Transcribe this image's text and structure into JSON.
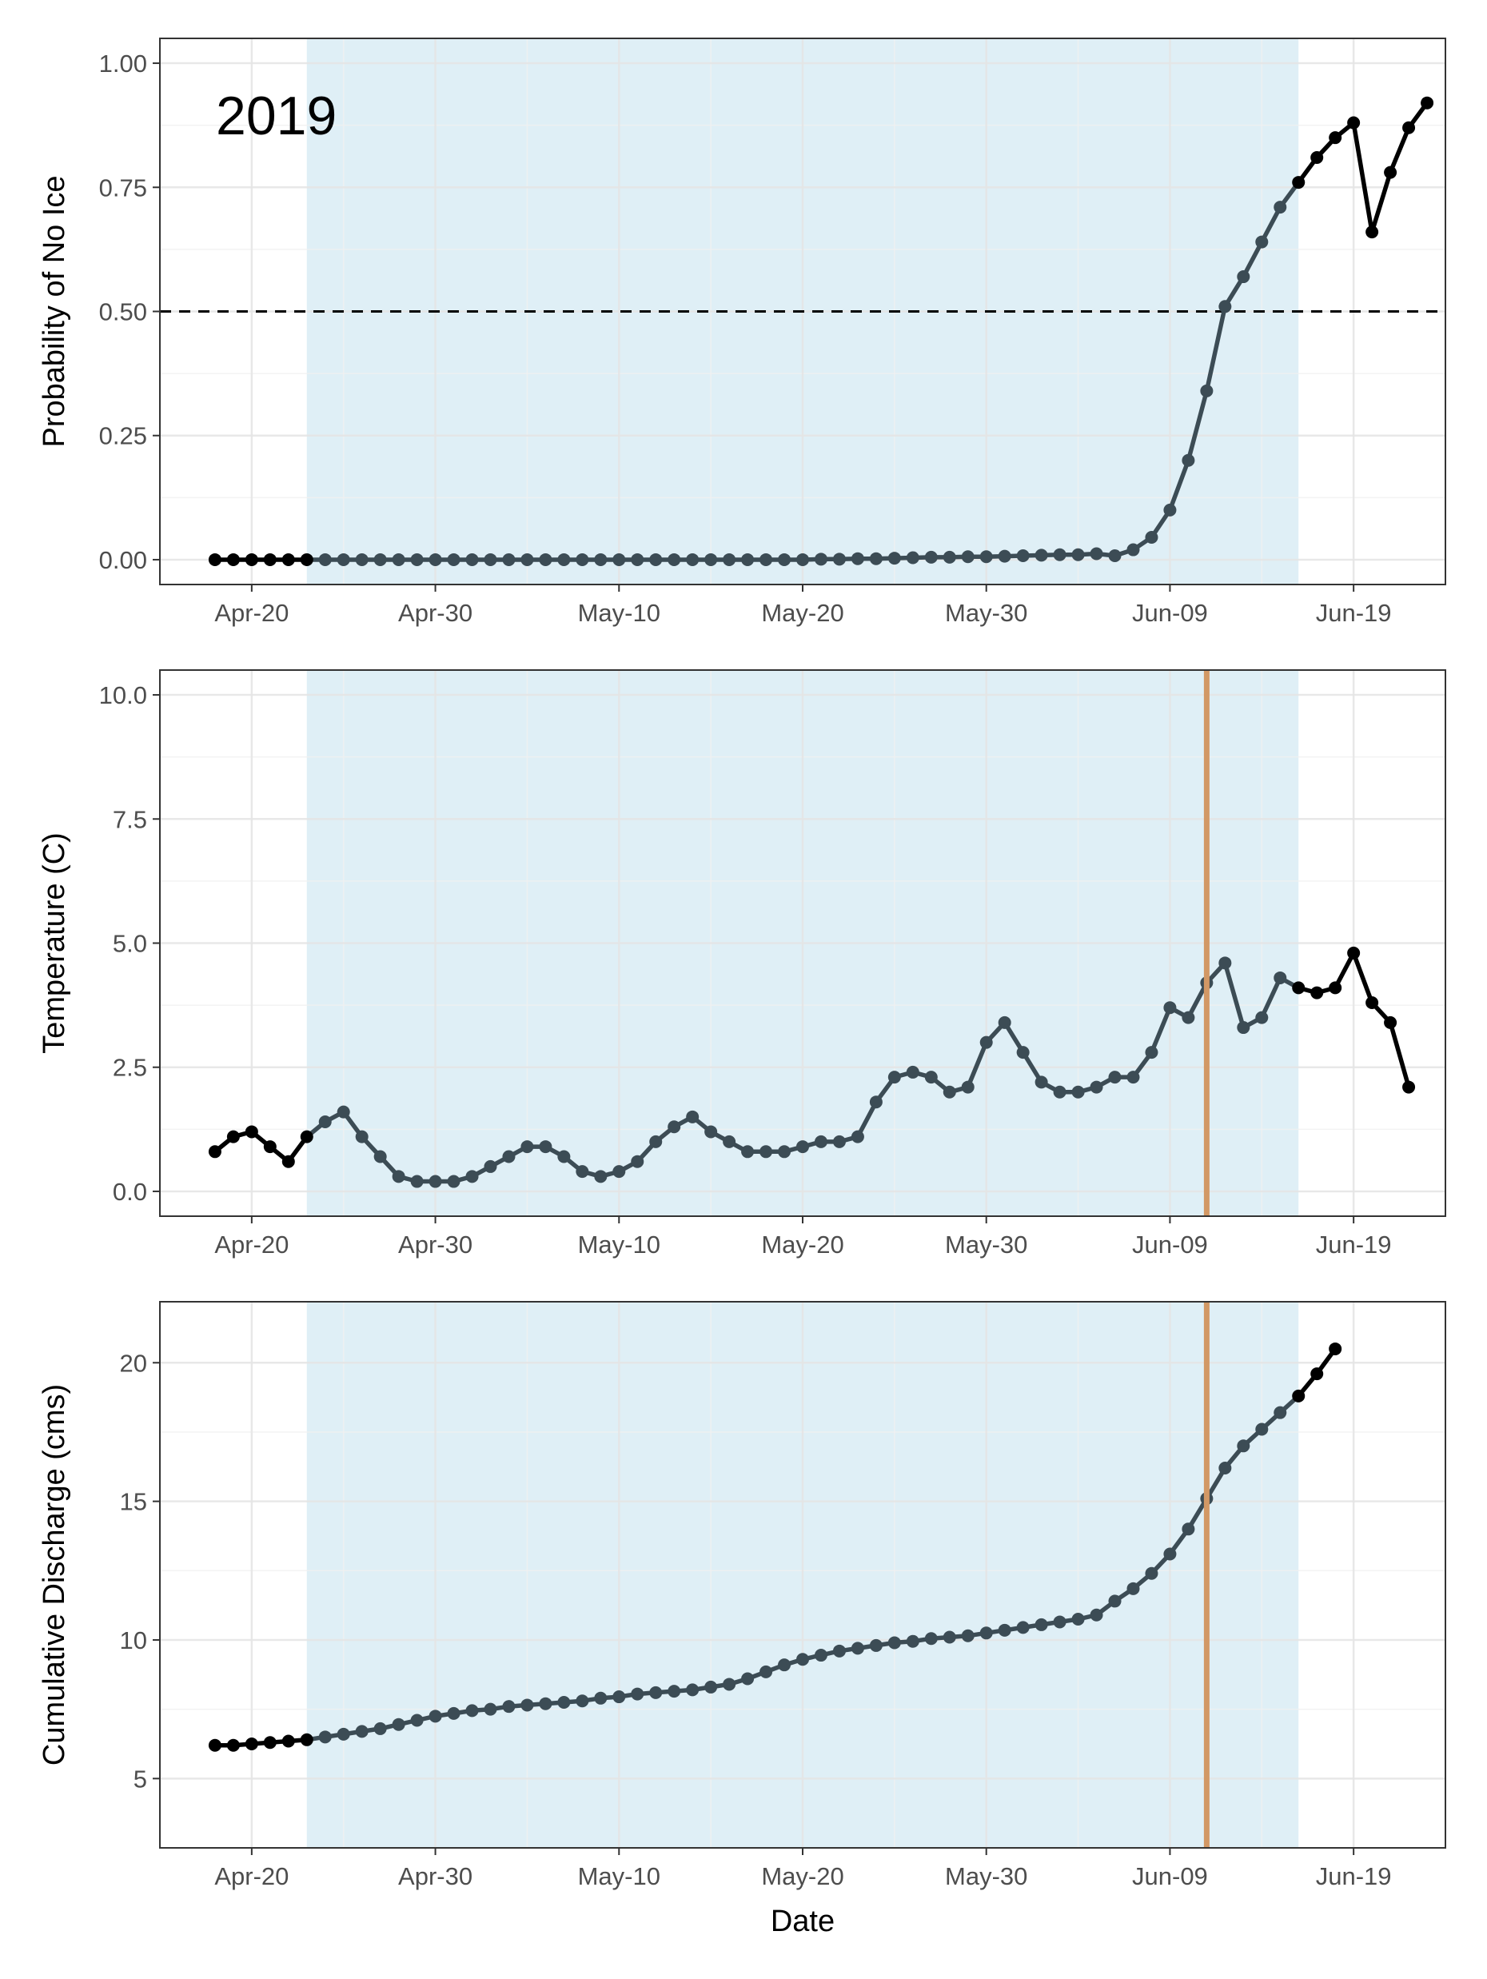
{
  "chart_data": {
    "type": "line",
    "annotation": "2019",
    "xlabel": "Date",
    "x_tick_labels": [
      "Apr-20",
      "Apr-30",
      "May-10",
      "May-20",
      "May-30",
      "Jun-09",
      "Jun-19"
    ],
    "x_tick_dates": [
      "2019-04-20",
      "2019-04-30",
      "2019-05-10",
      "2019-05-20",
      "2019-05-30",
      "2019-06-09",
      "2019-06-19"
    ],
    "xlim": [
      "2019-04-15",
      "2019-06-24"
    ],
    "shaded_period": {
      "start": "2019-04-23",
      "end": "2019-06-16",
      "color": "#ddeef5"
    },
    "colors": {
      "observed": "#000000",
      "shaded_series": "#3c4c55",
      "vertical_line": "#d29865",
      "threshold_line": "#000000",
      "grid_major": "#e5e5e5",
      "grid_minor": "#f1f1f1"
    },
    "panels": [
      {
        "ylabel": "Probability of No Ice",
        "ylim": [
          -0.05,
          1.05
        ],
        "y_ticks": [
          0,
          0.25,
          0.5,
          0.75,
          1
        ],
        "y_tick_labels": [
          "0.00",
          "0.25",
          "0.50",
          "0.75",
          "1.00"
        ],
        "hline": 0.5,
        "vline": null,
        "series": [
          {
            "start": "2019-04-18",
            "values": [
              0,
              0,
              0,
              0,
              0,
              0,
              0,
              0,
              0,
              0,
              0,
              0,
              0,
              0,
              0,
              0,
              0,
              0,
              0,
              0,
              0,
              0,
              0,
              0,
              0,
              0,
              0,
              0,
              0,
              0,
              0,
              0,
              0,
              0.001,
              0.001,
              0.002,
              0.002,
              0.003,
              0.004,
              0.005,
              0.005,
              0.006,
              0.006,
              0.007,
              0.008,
              0.009,
              0.01,
              0.01,
              0.012,
              0.008,
              0.02,
              0.045,
              0.1,
              0.2,
              0.34,
              0.51,
              0.57,
              0.64,
              0.71,
              0.76,
              0.81,
              0.85,
              0.88,
              0.66,
              0.78,
              0.87,
              0.92
            ]
          }
        ]
      },
      {
        "ylabel": "Temperature (C)",
        "ylim": [
          -0.5,
          10.5
        ],
        "y_ticks": [
          0,
          2.5,
          5,
          7.5,
          10
        ],
        "y_tick_labels": [
          "0.0",
          "2.5",
          "5.0",
          "7.5",
          "10.0"
        ],
        "hline": null,
        "vline": "2019-06-11",
        "series": [
          {
            "start": "2019-04-18",
            "values": [
              0.8,
              1.1,
              1.2,
              0.9,
              0.6,
              1.1,
              1.4,
              1.6,
              1.1,
              0.7,
              0.3,
              0.2,
              0.2,
              0.2,
              0.3,
              0.5,
              0.7,
              0.9,
              0.9,
              0.7,
              0.4,
              0.3,
              0.4,
              0.6,
              1.0,
              1.3,
              1.5,
              1.2,
              1.0,
              0.8,
              0.8,
              0.8,
              0.9,
              1.0,
              1.0,
              1.1,
              1.8,
              2.3,
              2.4,
              2.3,
              2.0,
              2.1,
              3.0,
              3.4,
              2.8,
              2.2,
              2.0,
              2.0,
              2.1,
              2.3,
              2.3,
              2.8,
              3.7,
              3.5,
              4.2,
              4.6,
              3.3,
              3.5,
              4.3,
              4.1,
              4.0,
              4.1,
              4.8,
              3.8,
              3.4,
              2.1
            ]
          }
        ]
      },
      {
        "ylabel": "Cumulative Discharge (cms)",
        "ylim": [
          2.5,
          22.2
        ],
        "y_ticks": [
          5,
          10,
          15,
          20
        ],
        "y_tick_labels": [
          "5",
          "10",
          "15",
          "20"
        ],
        "hline": null,
        "vline": "2019-06-11",
        "series": [
          {
            "start": "2019-04-18",
            "values": [
              6.2,
              6.2,
              6.25,
              6.3,
              6.35,
              6.4,
              6.5,
              6.6,
              6.7,
              6.8,
              6.95,
              7.1,
              7.25,
              7.35,
              7.45,
              7.5,
              7.6,
              7.65,
              7.7,
              7.75,
              7.8,
              7.9,
              7.95,
              8.05,
              8.1,
              8.15,
              8.2,
              8.3,
              8.4,
              8.6,
              8.85,
              9.1,
              9.3,
              9.45,
              9.6,
              9.7,
              9.8,
              9.9,
              9.95,
              10.05,
              10.1,
              10.15,
              10.25,
              10.35,
              10.45,
              10.55,
              10.65,
              10.75,
              10.9,
              11.4,
              11.85,
              12.4,
              13.1,
              14.0,
              15.1,
              16.2,
              17.0,
              17.6,
              18.2,
              18.8,
              19.6,
              20.5
            ]
          }
        ]
      }
    ]
  }
}
